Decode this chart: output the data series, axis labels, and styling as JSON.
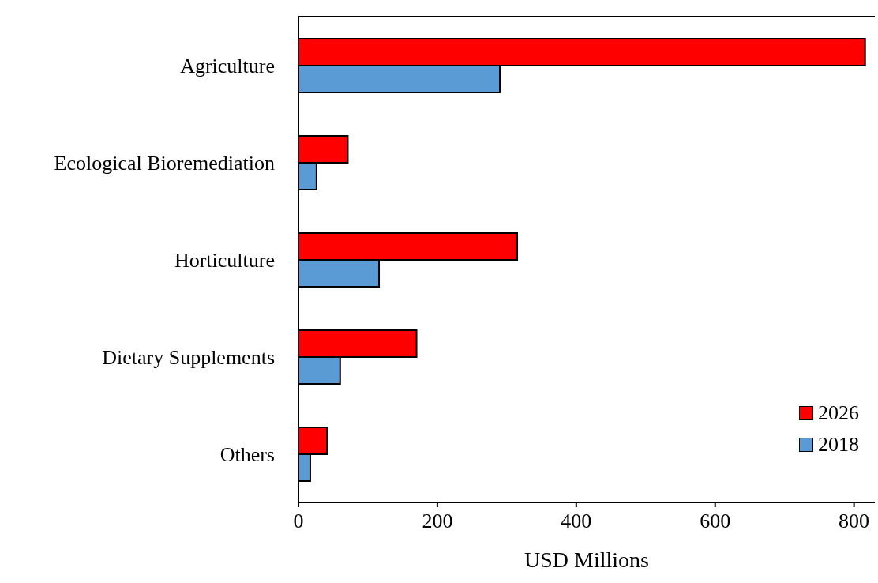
{
  "chart_data": {
    "type": "bar",
    "orientation": "horizontal",
    "xlabel": "USD Millions",
    "categories": [
      "Agriculture",
      "Ecological Bioremediation",
      "Horticulture",
      "Dietary Supplements",
      "Others"
    ],
    "series": [
      {
        "name": "2026",
        "color": "#ff0000",
        "values": [
          816,
          71,
          315,
          170,
          41
        ]
      },
      {
        "name": "2018",
        "color": "#5b9bd5",
        "values": [
          290,
          26,
          116,
          60,
          17
        ]
      }
    ],
    "xlim": [
      0,
      830
    ],
    "xticks": [
      0,
      200,
      400,
      600,
      800
    ],
    "legend": "bottom right"
  }
}
